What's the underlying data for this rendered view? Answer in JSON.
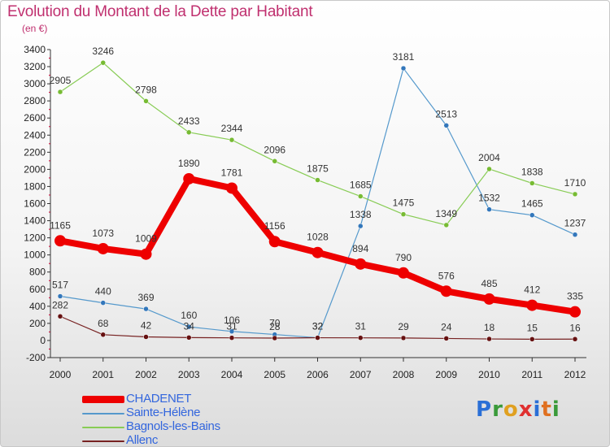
{
  "header": {
    "title": "Evolution du Montant de la Dette par Habitant",
    "subtitle": "(en €)"
  },
  "colors": {
    "title": "#c0306f",
    "legend_text": "#3366dd",
    "axis": "#333333",
    "grid_tick": "#cc0033"
  },
  "logo": {
    "letters": [
      "P",
      "r",
      "o",
      "x",
      "i",
      "t",
      "i"
    ],
    "colors": [
      "#2a6fd6",
      "#3a9a3a",
      "#e0a020",
      "#e03030",
      "#2a6fd6",
      "#e07020",
      "#3a9a3a"
    ]
  },
  "chart_data": {
    "type": "line",
    "title": "Evolution du Montant de la Dette par Habitant",
    "subtitle": "(en €)",
    "xlabel": "",
    "ylabel": "",
    "x": [
      "2000",
      "2001",
      "2002",
      "2003",
      "2004",
      "2005",
      "2006",
      "2007",
      "2008",
      "2009",
      "2010",
      "2011",
      "2012"
    ],
    "ylim": [
      -200,
      3400
    ],
    "yticks": [
      -200,
      0,
      200,
      400,
      600,
      800,
      1000,
      1200,
      1400,
      1600,
      1800,
      2000,
      2200,
      2400,
      2600,
      2800,
      3000,
      3200,
      3400
    ],
    "grid": false,
    "legend_position": "bottom-left",
    "series": [
      {
        "name": "CHADENET",
        "color": "#ee0000",
        "values": [
          1165,
          1073,
          1009,
          1890,
          1781,
          1156,
          1028,
          894,
          790,
          576,
          485,
          412,
          335
        ],
        "labels": [
          "1165",
          "1073",
          "1009",
          "1890",
          "1781",
          "1156",
          "1028",
          "894",
          "790",
          "576",
          "485",
          "412",
          "335"
        ]
      },
      {
        "name": "Sainte-Hélène",
        "color": "#5599cc",
        "values": [
          517,
          440,
          369,
          160,
          106,
          70,
          32,
          1338,
          3181,
          2513,
          1532,
          1465,
          1237
        ],
        "labels": [
          "517",
          "440",
          "369",
          "160",
          "106",
          "70",
          "32",
          "1338",
          "3181",
          "2513",
          "1532",
          "1465",
          "1237"
        ]
      },
      {
        "name": "Bagnols-les-Bains",
        "color": "#88cc55",
        "values": [
          2905,
          3246,
          2798,
          2433,
          2344,
          2096,
          1875,
          1685,
          1475,
          1349,
          2004,
          1838,
          1710
        ],
        "labels": [
          "2905",
          "3246",
          "2798",
          "2433",
          "2344",
          "2096",
          "1875",
          "1685",
          "1475",
          "1349",
          "2004",
          "1838",
          "1710"
        ]
      },
      {
        "name": "Allenc",
        "color": "#772222",
        "values": [
          282,
          68,
          42,
          34,
          31,
          28,
          32,
          31,
          29,
          24,
          18,
          15,
          16
        ],
        "labels": [
          "282",
          "68",
          "42",
          "34",
          "31",
          "28",
          "32",
          "31",
          "29",
          "24",
          "18",
          "15",
          "16"
        ]
      }
    ]
  }
}
